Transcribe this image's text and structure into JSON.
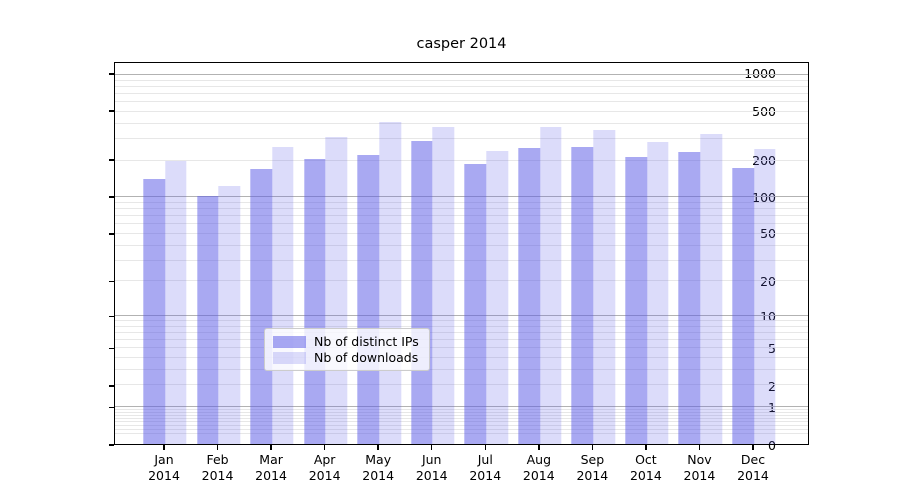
{
  "figure": {
    "title": "casper 2014",
    "background": "#ffffff"
  },
  "chart_data": {
    "type": "bar",
    "title": "casper 2014",
    "categories": [
      "Jan 2014",
      "Feb 2014",
      "Mar 2014",
      "Apr 2014",
      "May 2014",
      "Jun 2014",
      "Jul 2014",
      "Aug 2014",
      "Sep 2014",
      "Oct 2014",
      "Nov 2014",
      "Dec 2014"
    ],
    "month_labels": [
      "Jan",
      "Feb",
      "Mar",
      "Apr",
      "May",
      "Jun",
      "Jul",
      "Aug",
      "Sep",
      "Oct",
      "Nov",
      "Dec"
    ],
    "year_label": "2014",
    "series": [
      {
        "name": "Nb of distinct IPs",
        "key": "distinct-ips",
        "color": "rgba(90,90,230,0.52)",
        "values": [
          142,
          102,
          171,
          207,
          223,
          290,
          188,
          252,
          257,
          216,
          234,
          173
        ]
      },
      {
        "name": "Nb of downloads",
        "key": "downloads",
        "color": "rgba(90,90,230,0.21)",
        "values": [
          200,
          125,
          257,
          315,
          410,
          378,
          241,
          380,
          358,
          282,
          330,
          247
        ]
      }
    ],
    "yscale": "log1p",
    "ylim": [
      0,
      1250
    ],
    "yticks": [
      0,
      1,
      2,
      5,
      10,
      20,
      50,
      100,
      200,
      500,
      1000
    ],
    "minor_grid_decades": [
      -1,
      0,
      1,
      2
    ],
    "grid": true,
    "legend_position": "lower center",
    "colors": {
      "bar_distinct_ips_rendered": "#a5a5f0",
      "bar_downloads_rendered": "#dcdcf9",
      "major_grid": "#b2b2b2",
      "minor_grid": "#e7e7e7",
      "axis_frame": "#000000",
      "text": "#000000",
      "legend_border": "#cccccc"
    }
  }
}
